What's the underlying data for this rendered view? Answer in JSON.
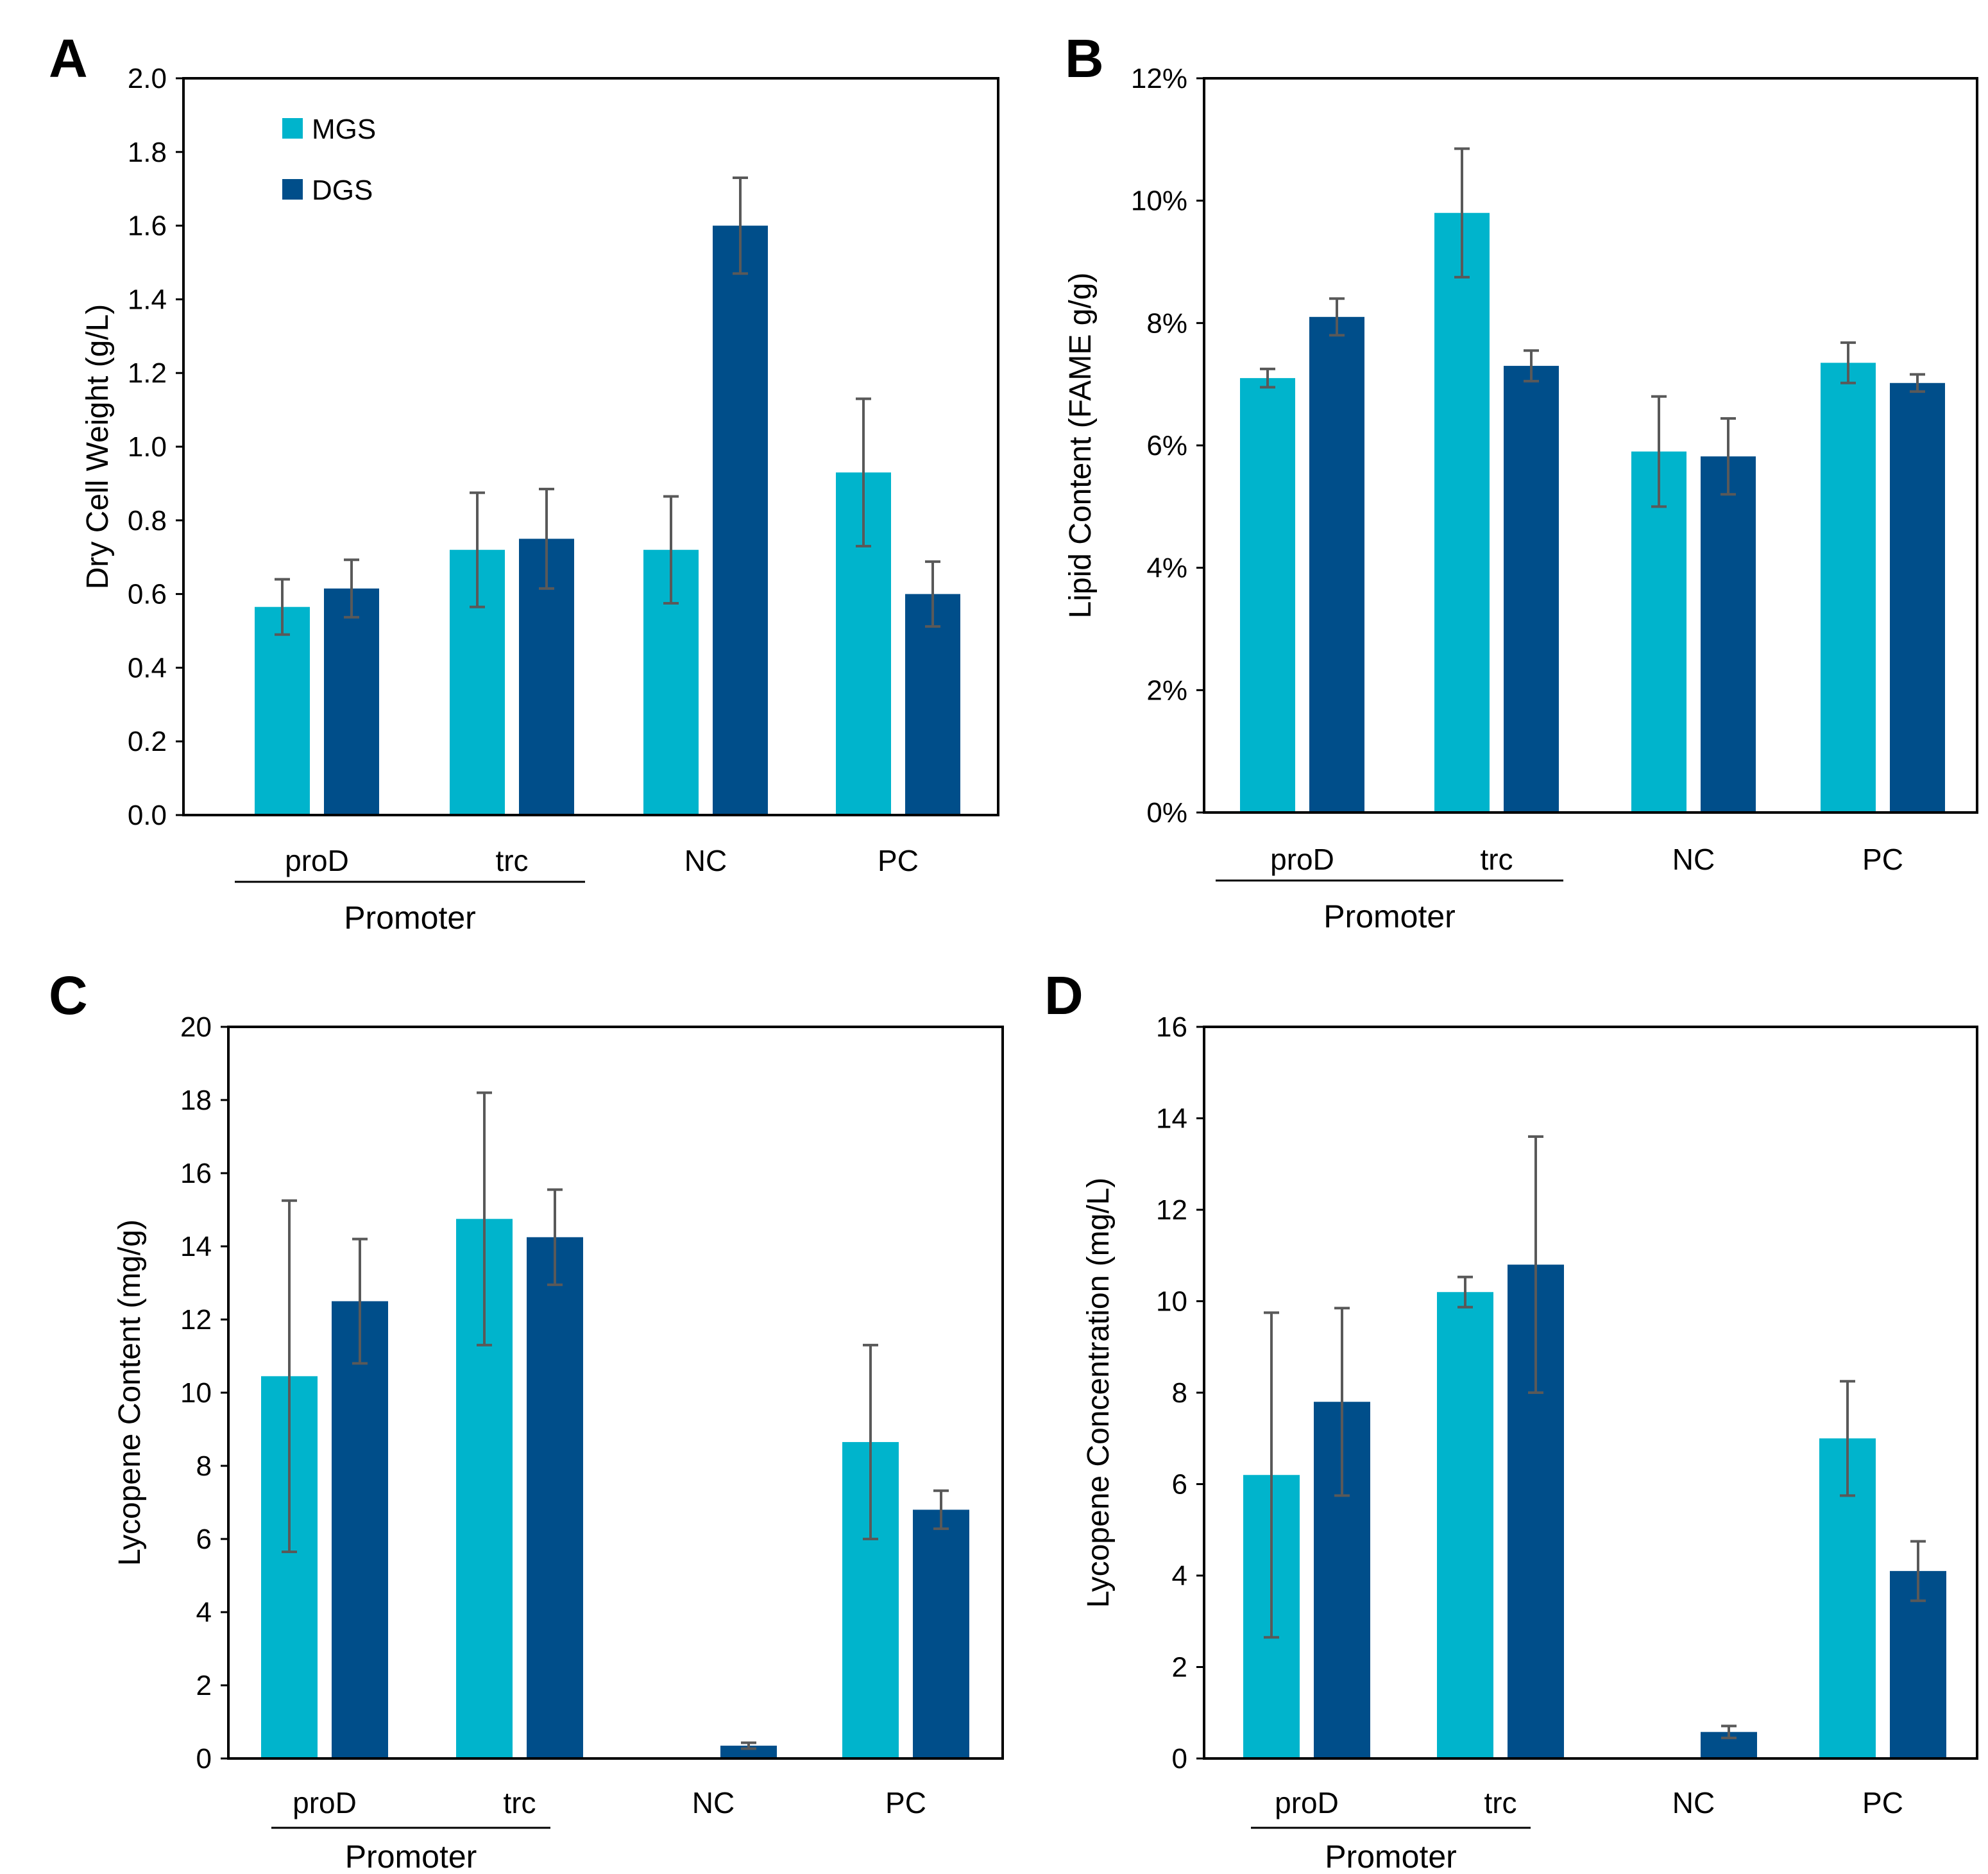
{
  "colors": {
    "MGS": "#00b4cc",
    "DGS": "#004e8a",
    "error_bar": "#595959",
    "axis": "#000000"
  },
  "chart_data": [
    {
      "panel": "A",
      "type": "bar",
      "categories": [
        "proD",
        "trc",
        "NC",
        "PC"
      ],
      "group_label": "Promoter",
      "series": [
        {
          "name": "MGS",
          "values": [
            0.565,
            0.72,
            0.72,
            0.93
          ],
          "errors": [
            0.075,
            0.155,
            0.145,
            0.2
          ]
        },
        {
          "name": "DGS",
          "values": [
            0.615,
            0.75,
            1.6,
            0.6
          ],
          "errors": [
            0.078,
            0.135,
            0.13,
            0.088
          ]
        }
      ],
      "ylabel": "Dry Cell Weight (g/L)",
      "ylim": [
        0,
        2.0
      ],
      "yticks": [
        0,
        0.2,
        0.4,
        0.6,
        0.8,
        1.0,
        1.2,
        1.4,
        1.6,
        1.8,
        2.0
      ],
      "yticklabels": [
        "0.0",
        "0.2",
        "0.4",
        "0.6",
        "0.8",
        "1.0",
        "1.2",
        "1.4",
        "1.6",
        "1.8",
        "2.0"
      ],
      "legend": [
        "MGS",
        "DGS"
      ],
      "legend_position": "top-left"
    },
    {
      "panel": "B",
      "type": "bar",
      "categories": [
        "proD",
        "trc",
        "NC",
        "PC"
      ],
      "group_label": "Promoter",
      "series": [
        {
          "name": "MGS",
          "values": [
            7.1,
            9.8,
            5.9,
            7.35
          ],
          "errors": [
            0.15,
            1.05,
            0.9,
            0.33
          ]
        },
        {
          "name": "DGS",
          "values": [
            8.1,
            7.3,
            5.82,
            7.02
          ],
          "errors": [
            0.3,
            0.25,
            0.62,
            0.14
          ]
        }
      ],
      "ylabel": "Lipid Content (FAME g/g)",
      "ylim": [
        0,
        12
      ],
      "yticks": [
        0,
        2,
        4,
        6,
        8,
        10,
        12
      ],
      "yticklabels": [
        "0%",
        "2%",
        "4%",
        "6%",
        "8%",
        "10%",
        "12%"
      ]
    },
    {
      "panel": "C",
      "type": "bar",
      "categories": [
        "proD",
        "trc",
        "NC",
        "PC"
      ],
      "group_label": "Promoter",
      "series": [
        {
          "name": "MGS",
          "values": [
            10.45,
            14.75,
            0,
            8.65
          ],
          "errors": [
            4.8,
            3.45,
            0,
            2.65
          ]
        },
        {
          "name": "DGS",
          "values": [
            12.5,
            14.25,
            0.35,
            6.8
          ],
          "errors": [
            1.7,
            1.3,
            0.08,
            0.52
          ]
        }
      ],
      "ylabel": "Lycopene Content (mg/g)",
      "ylim": [
        0,
        20
      ],
      "yticks": [
        0,
        2,
        4,
        6,
        8,
        10,
        12,
        14,
        16,
        18,
        20
      ],
      "yticklabels": [
        "0",
        "2",
        "4",
        "6",
        "8",
        "10",
        "12",
        "14",
        "16",
        "18",
        "20"
      ]
    },
    {
      "panel": "D",
      "type": "bar",
      "categories": [
        "proD",
        "trc",
        "NC",
        "PC"
      ],
      "group_label": "Promoter",
      "series": [
        {
          "name": "MGS",
          "values": [
            6.2,
            10.2,
            0,
            7.0
          ],
          "errors": [
            3.55,
            0.33,
            0,
            1.25
          ]
        },
        {
          "name": "DGS",
          "values": [
            7.8,
            10.8,
            0.58,
            4.1
          ],
          "errors": [
            2.05,
            2.8,
            0.13,
            0.65
          ]
        }
      ],
      "ylabel": "Lycopene Concentration (mg/L)",
      "ylim": [
        0,
        16
      ],
      "yticks": [
        0,
        2,
        4,
        6,
        8,
        10,
        12,
        14,
        16
      ],
      "yticklabels": [
        "0",
        "2",
        "4",
        "6",
        "8",
        "10",
        "12",
        "14",
        "16"
      ]
    }
  ]
}
